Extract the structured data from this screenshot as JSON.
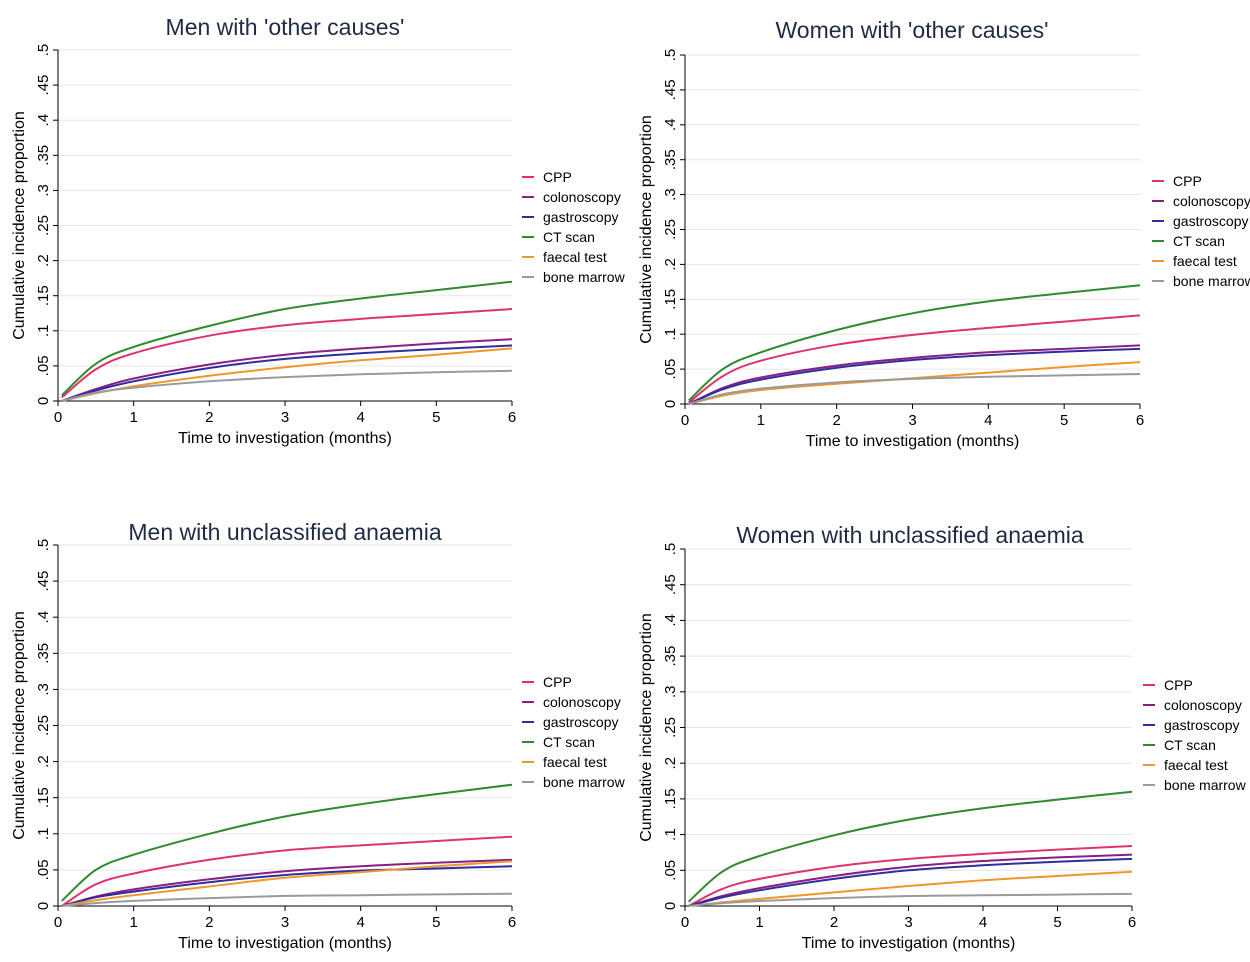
{
  "colors": {
    "CPP": "#e0336b",
    "colonoscopy": "#8a1e84",
    "gastroscopy": "#2e2e9e",
    "CT scan": "#2e8b2e",
    "faecal test": "#f0962d",
    "bone marrow": "#9a9a9a"
  },
  "chart_data": [
    {
      "type": "line",
      "title": "Men with 'other causes'",
      "xlabel": "Time to investigation (months)",
      "ylabel": "Cumulative incidence proportion",
      "xlim": [
        0,
        6
      ],
      "ylim": [
        0,
        0.5
      ],
      "xticks": [
        "0",
        "1",
        "2",
        "3",
        "4",
        "5",
        "6"
      ],
      "yticks": [
        "0",
        ".05",
        ".1",
        ".15",
        ".2",
        ".25",
        ".3",
        ".35",
        ".4",
        ".45",
        ".5"
      ],
      "grid": true,
      "legend": "right",
      "x": [
        0.05,
        0.5,
        1,
        2,
        3,
        4,
        5,
        6
      ],
      "series": [
        {
          "name": "CPP",
          "values": [
            0.005,
            0.045,
            0.068,
            0.093,
            0.108,
            0.117,
            0.124,
            0.131
          ]
        },
        {
          "name": "colonoscopy",
          "values": [
            0.0,
            0.017,
            0.032,
            0.052,
            0.066,
            0.075,
            0.082,
            0.088
          ]
        },
        {
          "name": "gastroscopy",
          "values": [
            0.0,
            0.015,
            0.028,
            0.047,
            0.06,
            0.068,
            0.074,
            0.079
          ]
        },
        {
          "name": "CT scan",
          "values": [
            0.008,
            0.053,
            0.077,
            0.107,
            0.131,
            0.146,
            0.158,
            0.17
          ]
        },
        {
          "name": "faecal test",
          "values": [
            0.0,
            0.011,
            0.021,
            0.036,
            0.048,
            0.058,
            0.066,
            0.075
          ]
        },
        {
          "name": "bone marrow",
          "values": [
            0.0,
            0.012,
            0.019,
            0.028,
            0.034,
            0.038,
            0.041,
            0.043
          ]
        }
      ]
    },
    {
      "type": "line",
      "title": "Women with 'other causes'",
      "xlabel": "Time to investigation (months)",
      "ylabel": "Cumulative incidence proportion",
      "xlim": [
        0,
        6
      ],
      "ylim": [
        0,
        0.5
      ],
      "xticks": [
        "0",
        "1",
        "2",
        "3",
        "4",
        "5",
        "6"
      ],
      "yticks": [
        "0",
        ".05",
        ".1",
        ".15",
        ".2",
        ".25",
        ".3",
        ".35",
        ".4",
        ".45",
        ".5"
      ],
      "grid": true,
      "legend": "right",
      "x": [
        0.05,
        0.5,
        1,
        2,
        3,
        4,
        5,
        6
      ],
      "series": [
        {
          "name": "CPP",
          "values": [
            0.002,
            0.04,
            0.062,
            0.085,
            0.099,
            0.109,
            0.118,
            0.127
          ]
        },
        {
          "name": "colonoscopy",
          "values": [
            0.0,
            0.023,
            0.038,
            0.055,
            0.066,
            0.074,
            0.079,
            0.084
          ]
        },
        {
          "name": "gastroscopy",
          "values": [
            0.0,
            0.021,
            0.035,
            0.052,
            0.063,
            0.07,
            0.075,
            0.079
          ]
        },
        {
          "name": "CT scan",
          "values": [
            0.005,
            0.05,
            0.074,
            0.106,
            0.13,
            0.147,
            0.159,
            0.17
          ]
        },
        {
          "name": "faecal test",
          "values": [
            0.0,
            0.012,
            0.02,
            0.029,
            0.037,
            0.045,
            0.053,
            0.06
          ]
        },
        {
          "name": "bone marrow",
          "values": [
            0.0,
            0.014,
            0.022,
            0.031,
            0.036,
            0.039,
            0.041,
            0.043
          ]
        }
      ]
    },
    {
      "type": "line",
      "title": "Men with unclassified anaemia",
      "xlabel": "Time to investigation (months)",
      "ylabel": "Cumulative incidence proportion",
      "xlim": [
        0,
        6
      ],
      "ylim": [
        0,
        0.5
      ],
      "xticks": [
        "0",
        "1",
        "2",
        "3",
        "4",
        "5",
        "6"
      ],
      "yticks": [
        "0",
        ".05",
        ".1",
        ".15",
        ".2",
        ".25",
        ".3",
        ".35",
        ".4",
        ".45",
        ".5"
      ],
      "grid": true,
      "legend": "right",
      "x": [
        0.05,
        0.5,
        1,
        2,
        3,
        4,
        5,
        6
      ],
      "series": [
        {
          "name": "CPP",
          "values": [
            0.0,
            0.03,
            0.045,
            0.064,
            0.077,
            0.084,
            0.09,
            0.096
          ]
        },
        {
          "name": "colonoscopy",
          "values": [
            0.0,
            0.013,
            0.023,
            0.037,
            0.048,
            0.055,
            0.06,
            0.064
          ]
        },
        {
          "name": "gastroscopy",
          "values": [
            0.0,
            0.012,
            0.02,
            0.033,
            0.043,
            0.049,
            0.052,
            0.055
          ]
        },
        {
          "name": "CT scan",
          "values": [
            0.007,
            0.05,
            0.071,
            0.1,
            0.124,
            0.141,
            0.155,
            0.168
          ]
        },
        {
          "name": "faecal test",
          "values": [
            0.0,
            0.008,
            0.015,
            0.027,
            0.039,
            0.047,
            0.055,
            0.062
          ]
        },
        {
          "name": "bone marrow",
          "values": [
            0.0,
            0.004,
            0.007,
            0.011,
            0.014,
            0.015,
            0.016,
            0.017
          ]
        }
      ]
    },
    {
      "type": "line",
      "title": "Women with unclassified anaemia",
      "xlabel": "Time to investigation (months)",
      "ylabel": "Cumulative incidence proportion",
      "xlim": [
        0,
        6
      ],
      "ylim": [
        0,
        0.5
      ],
      "xticks": [
        "0",
        "1",
        "2",
        "3",
        "4",
        "5",
        "6"
      ],
      "yticks": [
        "0",
        ".05",
        ".1",
        ".15",
        ".2",
        ".25",
        ".3",
        ".35",
        ".4",
        ".45",
        ".5"
      ],
      "grid": true,
      "legend": "right",
      "x": [
        0.05,
        0.5,
        1,
        2,
        3,
        4,
        5,
        6
      ],
      "series": [
        {
          "name": "CPP",
          "values": [
            0.0,
            0.024,
            0.038,
            0.055,
            0.066,
            0.073,
            0.079,
            0.084
          ]
        },
        {
          "name": "colonoscopy",
          "values": [
            0.0,
            0.014,
            0.025,
            0.042,
            0.055,
            0.063,
            0.068,
            0.072
          ]
        },
        {
          "name": "gastroscopy",
          "values": [
            0.0,
            0.012,
            0.022,
            0.038,
            0.05,
            0.057,
            0.062,
            0.066
          ]
        },
        {
          "name": "CT scan",
          "values": [
            0.006,
            0.048,
            0.07,
            0.099,
            0.121,
            0.137,
            0.149,
            0.16
          ]
        },
        {
          "name": "faecal test",
          "values": [
            0.0,
            0.005,
            0.01,
            0.019,
            0.028,
            0.036,
            0.042,
            0.048
          ]
        },
        {
          "name": "bone marrow",
          "values": [
            0.0,
            0.004,
            0.007,
            0.011,
            0.014,
            0.015,
            0.016,
            0.017
          ]
        }
      ]
    }
  ]
}
